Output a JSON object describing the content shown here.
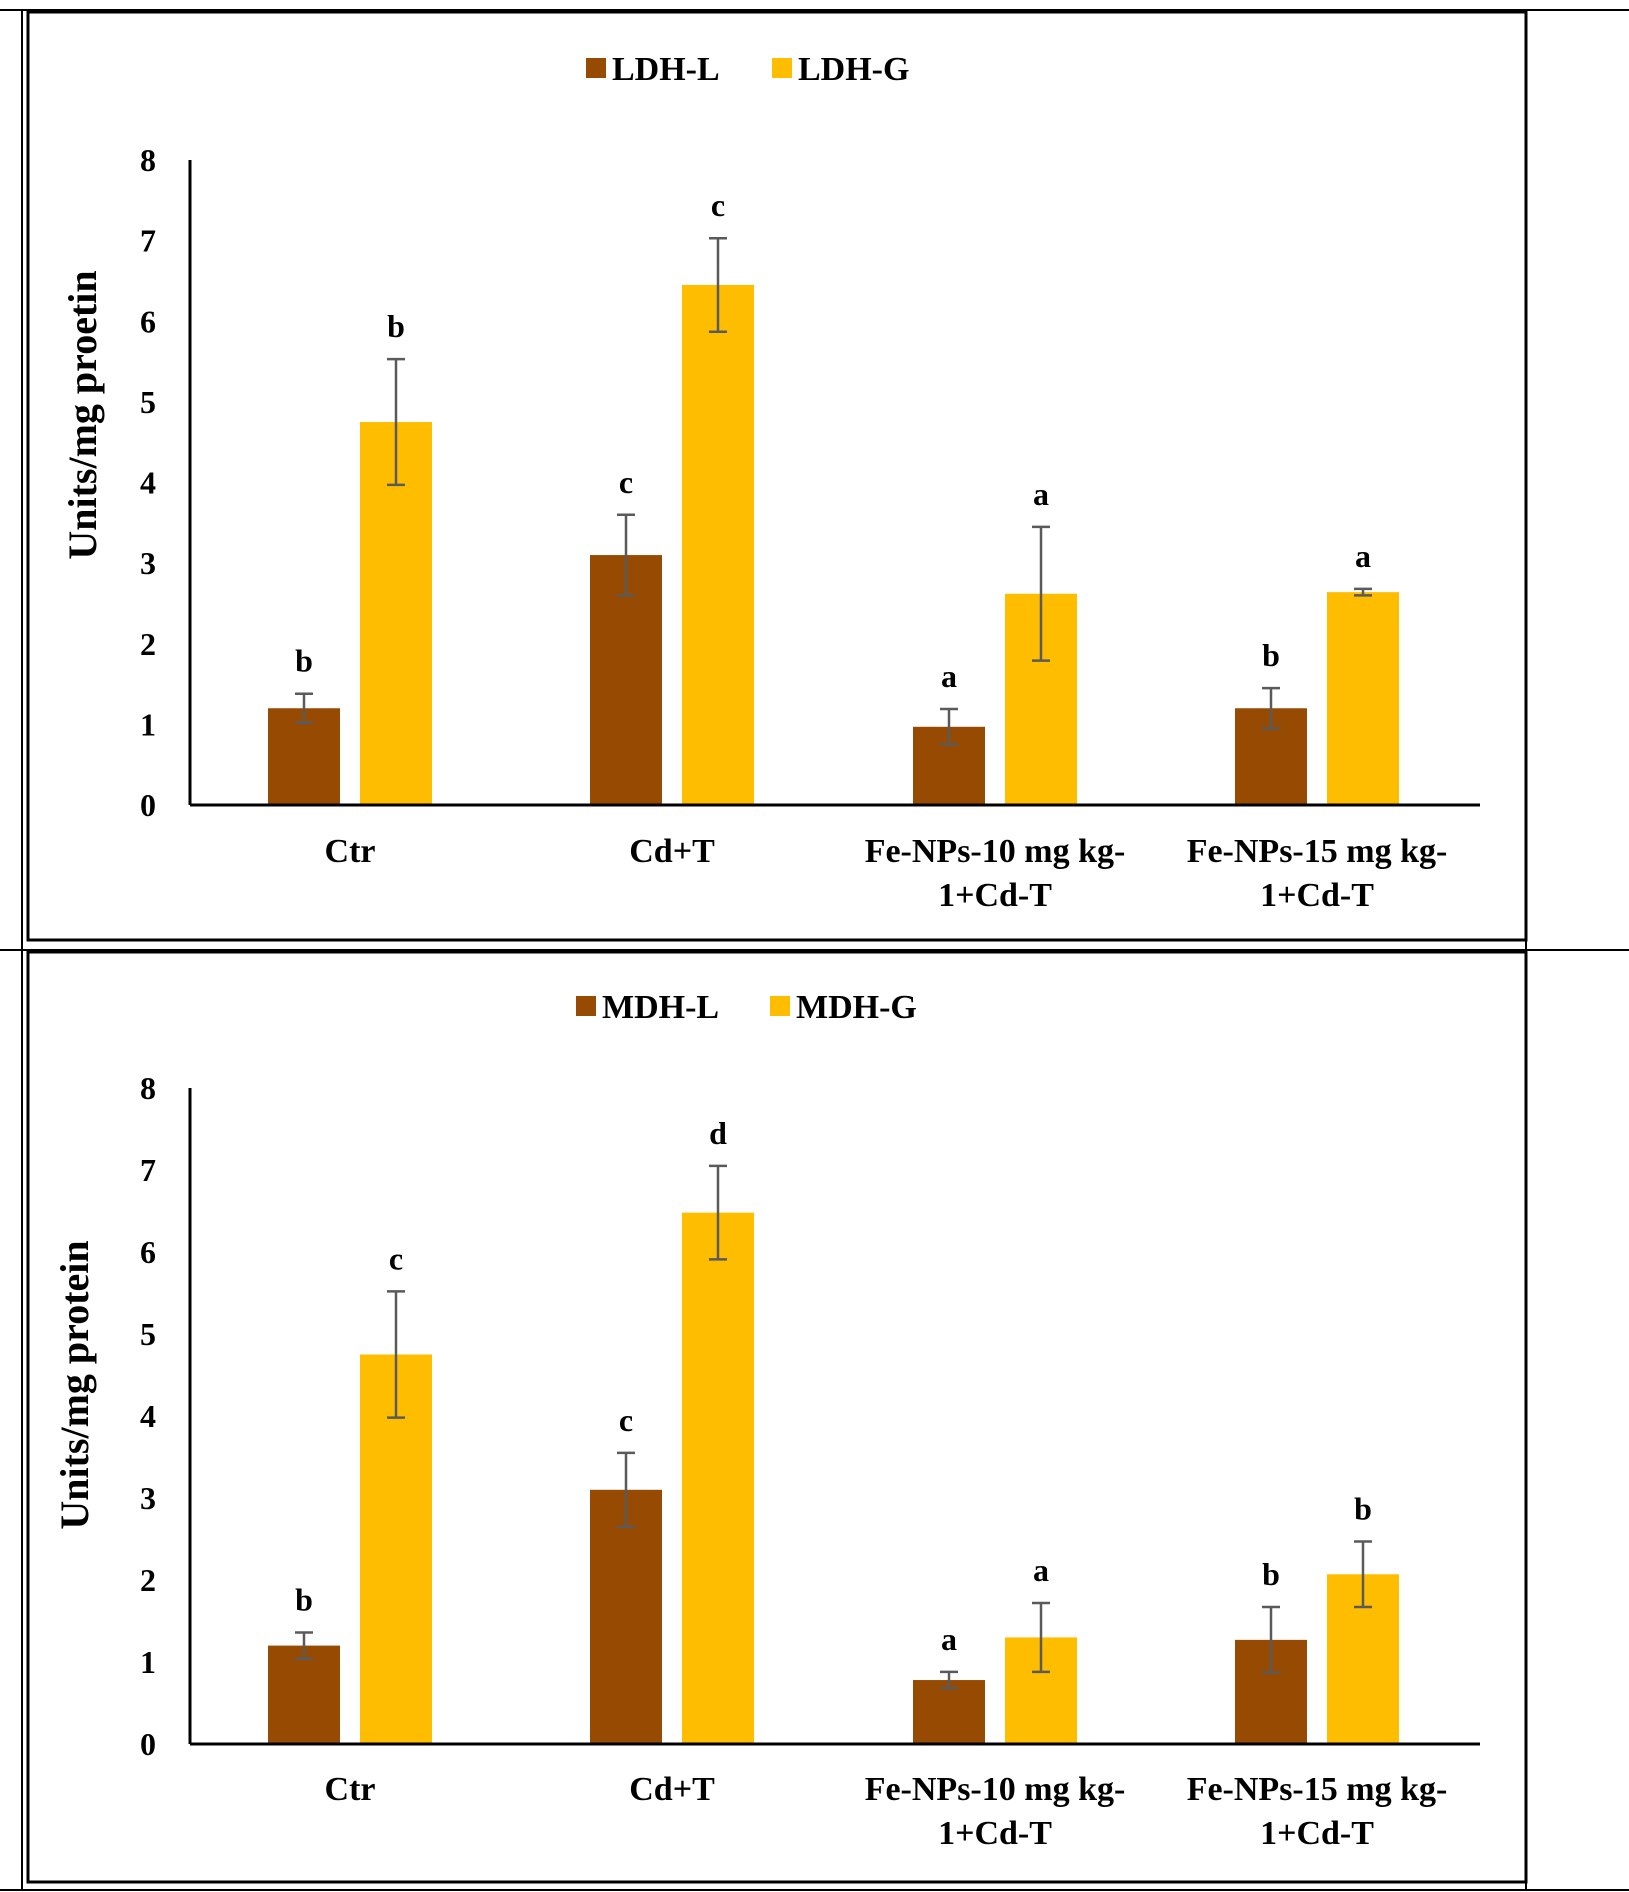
{
  "chart_data": [
    {
      "type": "bar",
      "title": "",
      "xlabel": "",
      "ylabel": "Units/mg proetin",
      "ylim": [
        0,
        8
      ],
      "yticks": [
        0,
        1,
        2,
        3,
        4,
        5,
        6,
        7,
        8
      ],
      "grid": false,
      "legend_position": "top-center",
      "categories": [
        [
          "Ctr"
        ],
        [
          "Cd+T"
        ],
        [
          "Fe-NPs-10 mg kg-",
          "1+Cd-T"
        ],
        [
          "Fe-NPs-15 mg kg-",
          "1+Cd-T"
        ]
      ],
      "series": [
        {
          "name": "LDH-L",
          "color": "#974a02",
          "values": [
            1.2,
            3.1,
            0.97,
            1.2
          ],
          "errors": [
            0.18,
            0.5,
            0.22,
            0.25
          ],
          "letters": [
            "b",
            "c",
            "a",
            "b"
          ]
        },
        {
          "name": "LDH-G",
          "color": "#ffbd00",
          "values": [
            4.75,
            6.45,
            2.62,
            2.64
          ],
          "errors": [
            0.78,
            0.58,
            0.83,
            0.04
          ],
          "letters": [
            "b",
            "c",
            "a",
            "a"
          ]
        }
      ]
    },
    {
      "type": "bar",
      "title": "",
      "xlabel": "",
      "ylabel": "Units/mg protein",
      "ylim": [
        0,
        8
      ],
      "yticks": [
        0,
        1,
        2,
        3,
        4,
        5,
        6,
        7,
        8
      ],
      "grid": false,
      "legend_position": "top-center",
      "categories": [
        [
          "Ctr"
        ],
        [
          "Cd+T"
        ],
        [
          "Fe-NPs-10 mg kg-",
          "1+Cd-T"
        ],
        [
          "Fe-NPs-15 mg kg-",
          "1+Cd-T"
        ]
      ],
      "series": [
        {
          "name": "MDH-L",
          "color": "#974a02",
          "values": [
            1.2,
            3.1,
            0.78,
            1.27
          ],
          "errors": [
            0.16,
            0.45,
            0.1,
            0.4
          ],
          "letters": [
            "b",
            "c",
            "a",
            "b"
          ]
        },
        {
          "name": "MDH-G",
          "color": "#ffbd00",
          "values": [
            4.75,
            6.48,
            1.3,
            2.07
          ],
          "errors": [
            0.77,
            0.57,
            0.42,
            0.4
          ],
          "letters": [
            "c",
            "d",
            "a",
            "b"
          ]
        }
      ]
    }
  ]
}
